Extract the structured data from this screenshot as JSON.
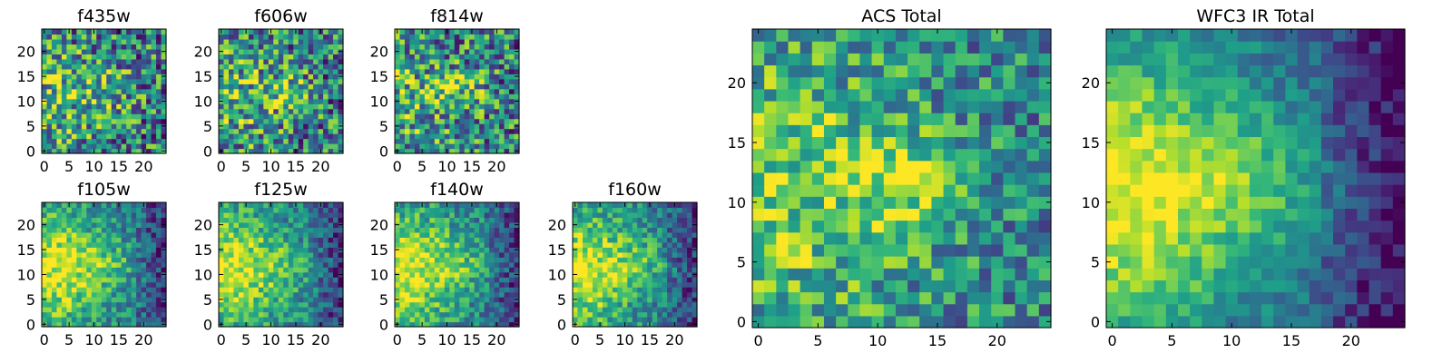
{
  "figure": {
    "description_free": true
  },
  "chart_data": [
    {
      "type": "heatmap",
      "title": "f435w",
      "xticks": [
        "0",
        "5",
        "10",
        "15",
        "20"
      ],
      "yticks": [
        "0",
        "5",
        "10",
        "15",
        "20"
      ],
      "xlim": [
        0,
        25
      ],
      "ylim": [
        0,
        25
      ],
      "grid_size": 25,
      "pattern": "acs_noisy",
      "colormap": "viridis"
    },
    {
      "type": "heatmap",
      "title": "f606w",
      "xticks": [
        "0",
        "5",
        "10",
        "15",
        "20"
      ],
      "yticks": [
        "0",
        "5",
        "10",
        "15",
        "20"
      ],
      "xlim": [
        0,
        25
      ],
      "ylim": [
        0,
        25
      ],
      "grid_size": 25,
      "pattern": "acs_noisy",
      "colormap": "viridis"
    },
    {
      "type": "heatmap",
      "title": "f814w",
      "xticks": [
        "0",
        "5",
        "10",
        "15",
        "20"
      ],
      "yticks": [
        "0",
        "5",
        "10",
        "15",
        "20"
      ],
      "xlim": [
        0,
        25
      ],
      "ylim": [
        0,
        25
      ],
      "grid_size": 25,
      "pattern": "acs_noisy",
      "colormap": "viridis"
    },
    {
      "type": "heatmap",
      "title": "f105w",
      "xticks": [
        "0",
        "5",
        "10",
        "15",
        "20"
      ],
      "yticks": [
        "0",
        "5",
        "10",
        "15",
        "20"
      ],
      "xlim": [
        0,
        25
      ],
      "ylim": [
        0,
        25
      ],
      "grid_size": 25,
      "pattern": "ir_smooth",
      "colormap": "viridis"
    },
    {
      "type": "heatmap",
      "title": "f125w",
      "xticks": [
        "0",
        "5",
        "10",
        "15",
        "20"
      ],
      "yticks": [
        "0",
        "5",
        "10",
        "15",
        "20"
      ],
      "xlim": [
        0,
        25
      ],
      "ylim": [
        0,
        25
      ],
      "grid_size": 25,
      "pattern": "ir_smooth",
      "colormap": "viridis"
    },
    {
      "type": "heatmap",
      "title": "f140w",
      "xticks": [
        "0",
        "5",
        "10",
        "15",
        "20"
      ],
      "yticks": [
        "0",
        "5",
        "10",
        "15",
        "20"
      ],
      "xlim": [
        0,
        25
      ],
      "ylim": [
        0,
        25
      ],
      "grid_size": 25,
      "pattern": "ir_smooth",
      "colormap": "viridis"
    },
    {
      "type": "heatmap",
      "title": "f160w",
      "xticks": [
        "0",
        "5",
        "10",
        "15",
        "20"
      ],
      "yticks": [
        "0",
        "5",
        "10",
        "15",
        "20"
      ],
      "xlim": [
        0,
        25
      ],
      "ylim": [
        0,
        25
      ],
      "grid_size": 25,
      "pattern": "ir_smooth",
      "colormap": "viridis"
    },
    {
      "type": "heatmap",
      "title": "ACS Total",
      "xticks": [
        "0",
        "5",
        "10",
        "15",
        "20"
      ],
      "yticks": [
        "0",
        "5",
        "10",
        "15",
        "20"
      ],
      "xlim": [
        0,
        25
      ],
      "ylim": [
        0,
        25
      ],
      "grid_size": 25,
      "pattern": "acs_total",
      "colormap": "viridis"
    },
    {
      "type": "heatmap",
      "title": "WFC3 IR Total",
      "xticks": [
        "0",
        "5",
        "10",
        "15",
        "20"
      ],
      "yticks": [
        "0",
        "5",
        "10",
        "15",
        "20"
      ],
      "xlim": [
        0,
        25
      ],
      "ylim": [
        0,
        25
      ],
      "grid_size": 25,
      "pattern": "ir_total",
      "colormap": "viridis"
    }
  ]
}
